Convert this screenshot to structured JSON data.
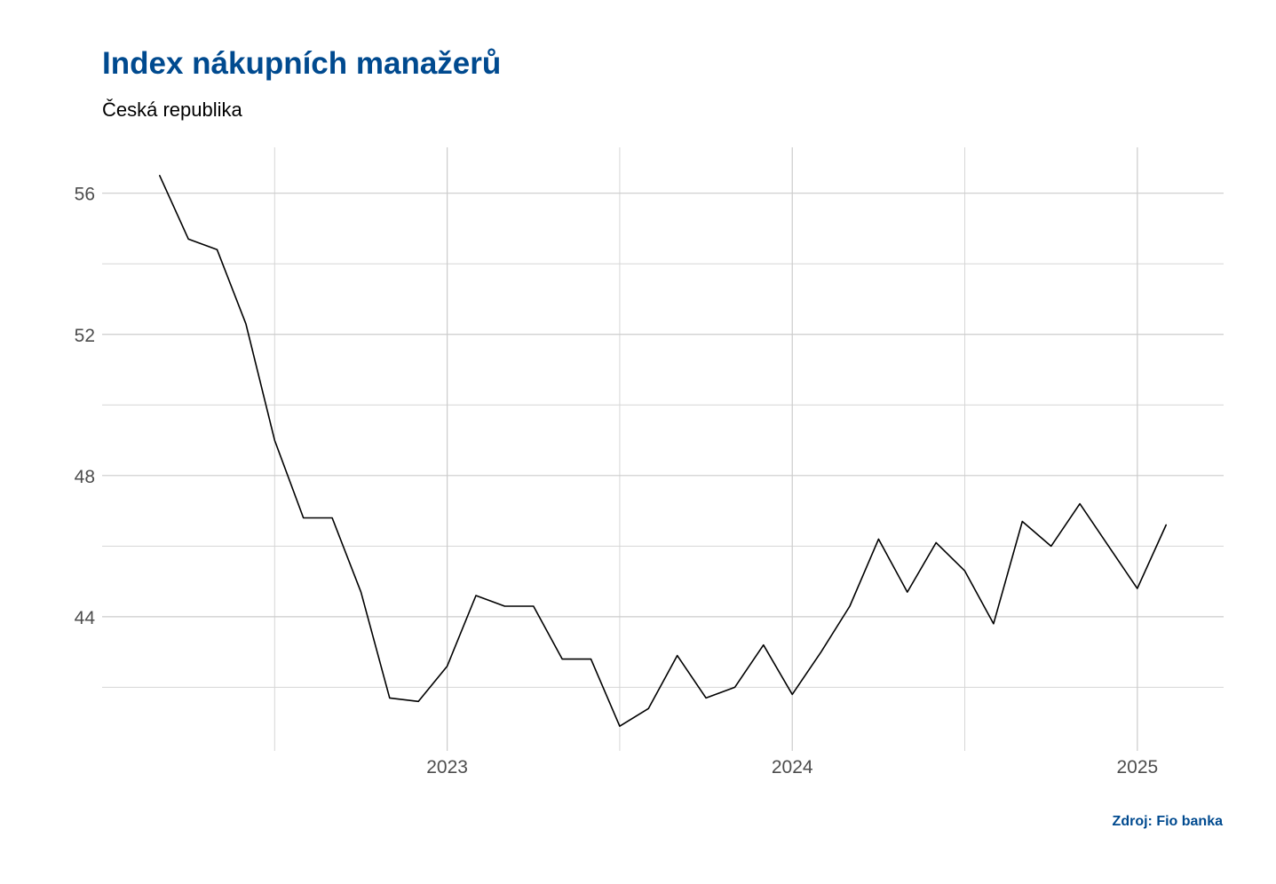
{
  "header": {
    "title": "Index nákupních manažerů",
    "subtitle": "Česká republika"
  },
  "footer": {
    "caption": "Zdroj: Fio banka"
  },
  "chart_data": {
    "type": "line",
    "title": "Index nákupních manažerů",
    "subtitle": "Česká republika",
    "xlabel": "",
    "ylabel": "",
    "x_start": "2022-03",
    "x_ticks": [
      {
        "date": "2023-01",
        "label": "2023"
      },
      {
        "date": "2024-01",
        "label": "2024"
      },
      {
        "date": "2025-01",
        "label": "2025"
      }
    ],
    "y_ticks": [
      44,
      48,
      52,
      56
    ],
    "ylim": [
      40.2,
      57.3
    ],
    "xlim": [
      "2022-01",
      "2025-04"
    ],
    "grid": true,
    "line_color": "#000000",
    "series": [
      {
        "name": "",
        "points": [
          {
            "x": "2022-03",
            "y": 56.5
          },
          {
            "x": "2022-04",
            "y": 54.7
          },
          {
            "x": "2022-05",
            "y": 54.4
          },
          {
            "x": "2022-06",
            "y": 52.3
          },
          {
            "x": "2022-07",
            "y": 49.0
          },
          {
            "x": "2022-08",
            "y": 46.8
          },
          {
            "x": "2022-09",
            "y": 46.8
          },
          {
            "x": "2022-10",
            "y": 44.7
          },
          {
            "x": "2022-11",
            "y": 41.7
          },
          {
            "x": "2022-12",
            "y": 41.6
          },
          {
            "x": "2023-01",
            "y": 42.6
          },
          {
            "x": "2023-02",
            "y": 44.6
          },
          {
            "x": "2023-03",
            "y": 44.3
          },
          {
            "x": "2023-04",
            "y": 44.3
          },
          {
            "x": "2023-05",
            "y": 42.8
          },
          {
            "x": "2023-06",
            "y": 42.8
          },
          {
            "x": "2023-07",
            "y": 40.9
          },
          {
            "x": "2023-08",
            "y": 41.4
          },
          {
            "x": "2023-09",
            "y": 42.9
          },
          {
            "x": "2023-10",
            "y": 41.7
          },
          {
            "x": "2023-11",
            "y": 42.0
          },
          {
            "x": "2023-12",
            "y": 43.2
          },
          {
            "x": "2024-01",
            "y": 41.8
          },
          {
            "x": "2024-02",
            "y": 43.0
          },
          {
            "x": "2024-03",
            "y": 44.3
          },
          {
            "x": "2024-04",
            "y": 46.2
          },
          {
            "x": "2024-05",
            "y": 44.7
          },
          {
            "x": "2024-06",
            "y": 46.1
          },
          {
            "x": "2024-07",
            "y": 45.3
          },
          {
            "x": "2024-08",
            "y": 43.8
          },
          {
            "x": "2024-09",
            "y": 46.7
          },
          {
            "x": "2024-10",
            "y": 46.0
          },
          {
            "x": "2024-11",
            "y": 47.2
          },
          {
            "x": "2024-12",
            "y": 46.0
          },
          {
            "x": "2025-01",
            "y": 44.8
          },
          {
            "x": "2025-02",
            "y": 46.6
          }
        ]
      }
    ]
  }
}
